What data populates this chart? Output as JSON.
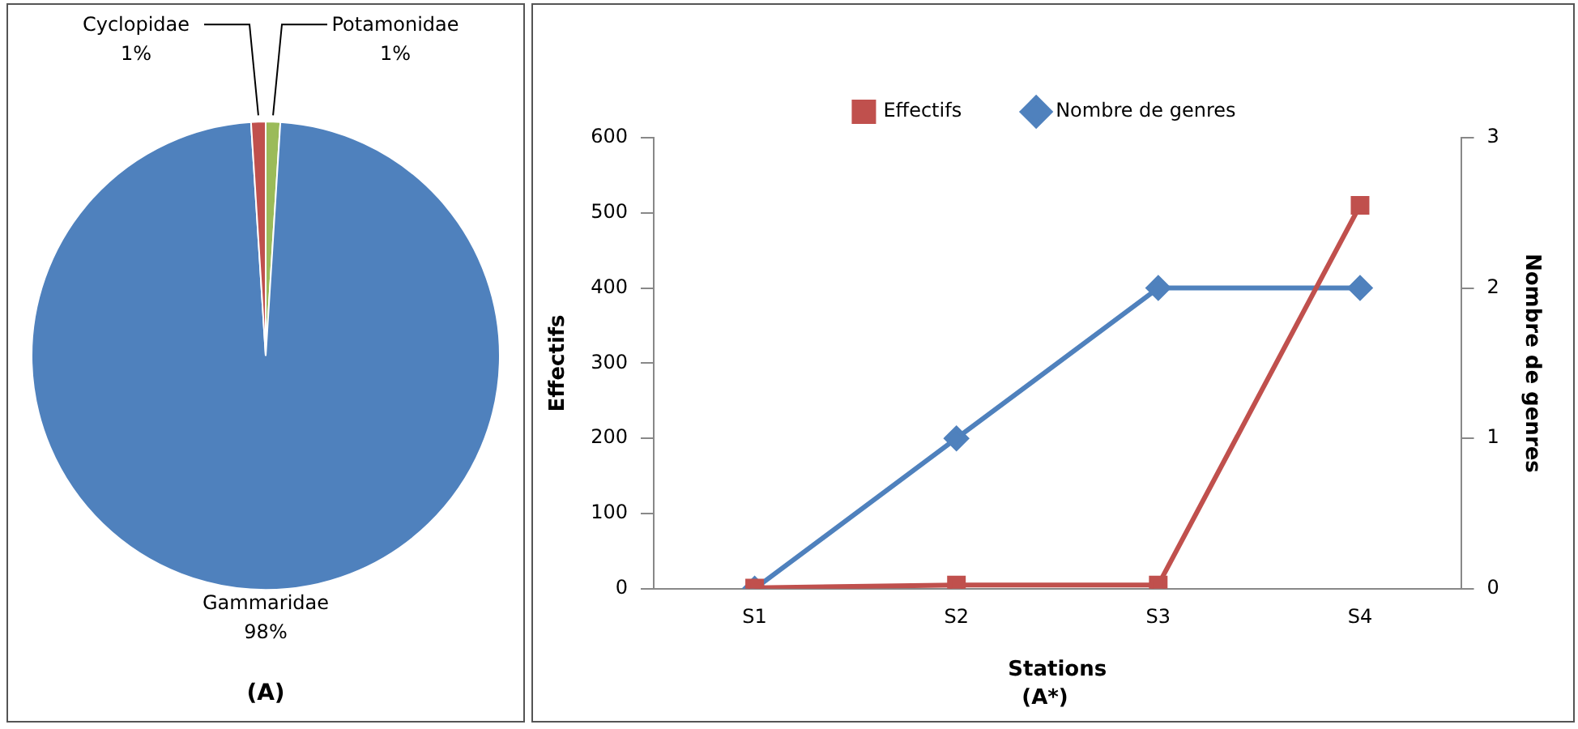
{
  "chart_data": [
    {
      "type": "pie",
      "title": "(A)",
      "categories": [
        "Potamonidae",
        "Gammaridae",
        "Cyclopidae"
      ],
      "values": [
        1,
        98,
        1
      ],
      "value_labels": [
        "1%",
        "98%",
        "1%"
      ],
      "colors": [
        "#9bbb59",
        "#4f81bd",
        "#c0504d"
      ],
      "legend": false
    },
    {
      "type": "line",
      "title": "(A*)",
      "xlabel": "Stations",
      "ylabel": "Effectifs",
      "y2label": "Nombre de genres",
      "categories": [
        "S1",
        "S2",
        "S3",
        "S4"
      ],
      "series": [
        {
          "name": "Effectifs",
          "color": "#c0504d",
          "values": [
            1,
            5,
            5,
            510
          ],
          "marker": "square"
        },
        {
          "name": "Nombre de genres",
          "color": "#4f81bd",
          "values": [
            0,
            1,
            2,
            2
          ],
          "axis": "y2",
          "marker": "diamond"
        }
      ],
      "ylim": [
        0,
        600
      ],
      "yticks": [
        0,
        100,
        200,
        300,
        400,
        500,
        600
      ],
      "y2lim": [
        0,
        3
      ],
      "y2ticks": [
        0,
        1,
        2,
        3
      ],
      "grid": false,
      "legend": "top"
    }
  ]
}
